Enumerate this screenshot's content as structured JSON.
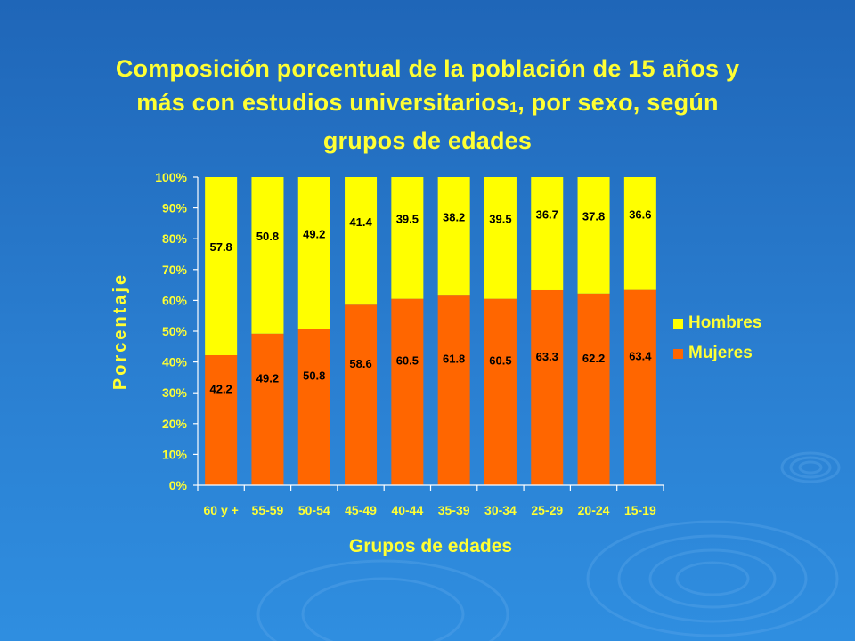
{
  "title": {
    "line1": "Composición porcentual de la población de 15 años y",
    "line2a": "más con estudios universitarios",
    "line2_note": "1",
    "line2b": ", por sexo, según",
    "line3": "grupos de edades"
  },
  "legend": {
    "hombres": "Hombres",
    "mujeres": "Mujeres"
  },
  "colors": {
    "hombres": "#ffff00",
    "mujeres": "#ff6600",
    "text": "#ffff33",
    "axis": "#ffffff"
  },
  "chart_data": {
    "type": "bar",
    "stacked": true,
    "xlabel": "Grupos de edades",
    "ylabel": "Porcentaje",
    "ylim": [
      0,
      100
    ],
    "yticks": [
      "0%",
      "10%",
      "20%",
      "30%",
      "40%",
      "50%",
      "60%",
      "70%",
      "80%",
      "90%",
      "100%"
    ],
    "categories": [
      "60 y +",
      "55-59",
      "50-54",
      "45-49",
      "40-44",
      "35-39",
      "30-34",
      "25-29",
      "20-24",
      "15-19"
    ],
    "series": [
      {
        "name": "Mujeres",
        "values": [
          42.2,
          49.2,
          50.8,
          58.6,
          60.5,
          61.8,
          60.5,
          63.3,
          62.2,
          63.4
        ]
      },
      {
        "name": "Hombres",
        "values": [
          57.8,
          50.8,
          49.2,
          41.4,
          39.5,
          38.2,
          39.5,
          36.7,
          37.8,
          36.6
        ]
      }
    ],
    "legend_position": "right"
  }
}
